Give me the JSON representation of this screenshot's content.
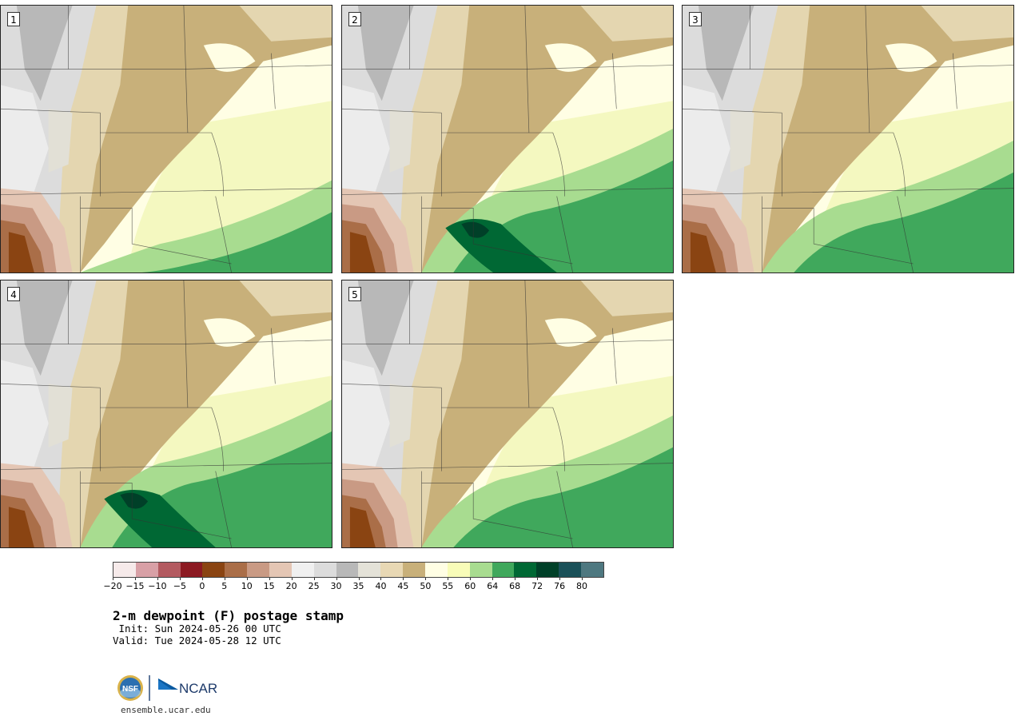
{
  "panels": [
    {
      "label": "1"
    },
    {
      "label": "2"
    },
    {
      "label": "3"
    },
    {
      "label": "4"
    },
    {
      "label": "5"
    }
  ],
  "colorbar": {
    "colors": [
      "#f6eaea",
      "#d8a0a6",
      "#b35a60",
      "#8c1a22",
      "#8a4412",
      "#aa6e48",
      "#c99a84",
      "#e4c6b4",
      "#f0f0f0",
      "#dcdcdc",
      "#b8b8b8",
      "#e4e2d8",
      "#e8d8b4",
      "#c8b07a",
      "#fffee4",
      "#f8fcb8",
      "#a8dc90",
      "#40a85c",
      "#006834",
      "#004028",
      "#1a5058",
      "#4e7880"
    ],
    "ticks": [
      "−20",
      "−15",
      "−10",
      "−5",
      "0",
      "5",
      "10",
      "15",
      "20",
      "25",
      "30",
      "35",
      "40",
      "45",
      "50",
      "55",
      "60",
      "64",
      "68",
      "72",
      "76",
      "80"
    ]
  },
  "title": "2-m dewpoint (F) postage stamp",
  "init": " Init: Sun 2024-05-26 00 UTC",
  "valid": "Valid: Tue 2024-05-28 12 UTC",
  "logos": {
    "nsf": "NSF",
    "ncar": "NCAR"
  },
  "url": "ensemble.ucar.edu"
}
